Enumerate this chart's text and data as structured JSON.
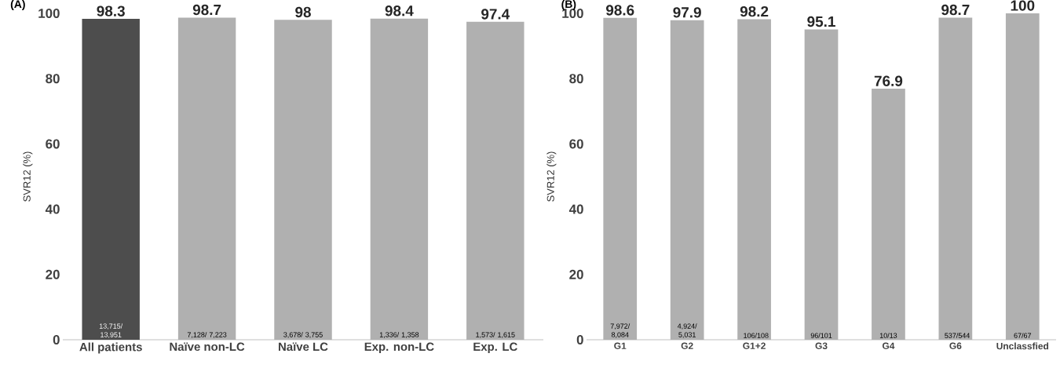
{
  "chart_data": [
    {
      "type": "bar",
      "title": "(A)",
      "ylabel": "SVR12 (%)",
      "categories": [
        "All patients",
        "Naïve non-LC",
        "Naïve LC",
        "Exp. non-LC",
        "Exp. LC"
      ],
      "values": [
        98.3,
        98.7,
        98,
        98.4,
        97.4
      ],
      "colors": [
        "#4d4d4d",
        "#b0b0b0",
        "#b0b0b0",
        "#b0b0b0",
        "#b0b0b0"
      ],
      "ylim": [
        0,
        100
      ],
      "yticks": [
        0,
        20,
        40,
        60,
        80,
        100
      ],
      "data_labels": true,
      "annotations": [
        "13,715/ 13,951",
        "7,128/ 7,223",
        "3,678/ 3,755",
        "1,336/ 1,358",
        "1,573/ 1,615"
      ]
    },
    {
      "type": "bar",
      "title": "(B)",
      "ylabel": "SVR12 (%)",
      "categories": [
        "G1",
        "G2",
        "G1+2",
        "G3",
        "G4",
        "G6",
        "Unclassfied"
      ],
      "values": [
        98.6,
        97.9,
        98.2,
        95.1,
        76.9,
        98.7,
        100
      ],
      "color": "#b0b0b0",
      "ylim": [
        0,
        100
      ],
      "yticks": [
        0,
        20,
        40,
        60,
        80,
        100
      ],
      "data_labels": true,
      "annotations": [
        "7,972/ 8,084",
        "4,924/ 5,031",
        "106/108",
        "96/101",
        "10/13",
        "537/544",
        "67/67"
      ]
    }
  ]
}
